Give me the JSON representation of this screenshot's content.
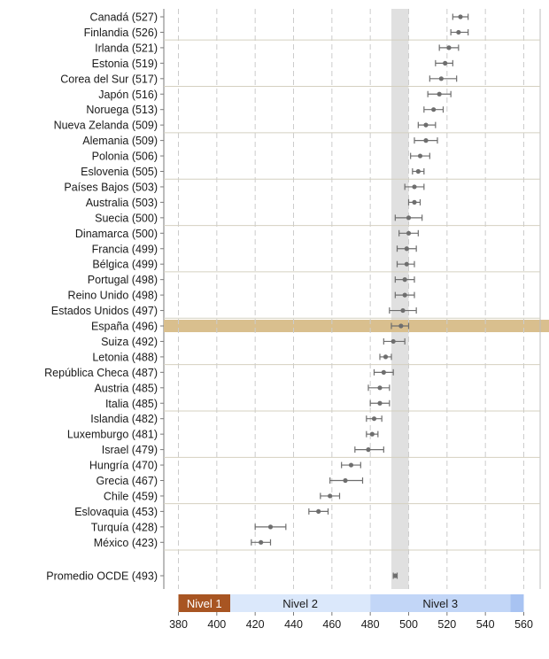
{
  "chart_data": {
    "type": "dot-errorbar",
    "title": "",
    "xlabel": "",
    "ylabel": "",
    "xlim": [
      370,
      570
    ],
    "xticks": [
      380,
      400,
      420,
      440,
      460,
      480,
      500,
      520,
      540,
      560
    ],
    "average_band": [
      491,
      500
    ],
    "highlight": "España (496)",
    "rows": [
      {
        "label": "Canadá (527)",
        "value": 527,
        "low": 523,
        "high": 531
      },
      {
        "label": "Finlandia (526)",
        "value": 526,
        "low": 522,
        "high": 531
      },
      {
        "label": "Irlanda (521)",
        "value": 521,
        "low": 516,
        "high": 526
      },
      {
        "label": "Estonia (519)",
        "value": 519,
        "low": 514,
        "high": 523
      },
      {
        "label": "Corea del Sur (517)",
        "value": 517,
        "low": 511,
        "high": 525
      },
      {
        "label": "Japón (516)",
        "value": 516,
        "low": 510,
        "high": 522
      },
      {
        "label": "Noruega (513)",
        "value": 513,
        "low": 508,
        "high": 518
      },
      {
        "label": "Nueva Zelanda (509)",
        "value": 509,
        "low": 505,
        "high": 514
      },
      {
        "label": "Alemania (509)",
        "value": 509,
        "low": 503,
        "high": 515
      },
      {
        "label": "Polonia (506)",
        "value": 506,
        "low": 501,
        "high": 511
      },
      {
        "label": "Eslovenia (505)",
        "value": 505,
        "low": 502,
        "high": 508
      },
      {
        "label": "Países Bajos (503)",
        "value": 503,
        "low": 498,
        "high": 508
      },
      {
        "label": "Australia (503)",
        "value": 503,
        "low": 500,
        "high": 506
      },
      {
        "label": "Suecia (500)",
        "value": 500,
        "low": 493,
        "high": 507
      },
      {
        "label": "Dinamarca (500)",
        "value": 500,
        "low": 495,
        "high": 505
      },
      {
        "label": "Francia (499)",
        "value": 499,
        "low": 494,
        "high": 504
      },
      {
        "label": "Bélgica (499)",
        "value": 499,
        "low": 494,
        "high": 503
      },
      {
        "label": "Portugal (498)",
        "value": 498,
        "low": 493,
        "high": 503
      },
      {
        "label": "Reino Unido (498)",
        "value": 498,
        "low": 493,
        "high": 503
      },
      {
        "label": "Estados Unidos (497)",
        "value": 497,
        "low": 490,
        "high": 504
      },
      {
        "label": "España (496)",
        "value": 496,
        "low": 491,
        "high": 500
      },
      {
        "label": "Suiza (492)",
        "value": 492,
        "low": 487,
        "high": 498
      },
      {
        "label": "Letonia (488)",
        "value": 488,
        "low": 485,
        "high": 491
      },
      {
        "label": "República Checa (487)",
        "value": 487,
        "low": 482,
        "high": 492
      },
      {
        "label": "Austria (485)",
        "value": 485,
        "low": 479,
        "high": 490
      },
      {
        "label": "Italia (485)",
        "value": 485,
        "low": 480,
        "high": 490
      },
      {
        "label": "Islandia (482)",
        "value": 482,
        "low": 478,
        "high": 486
      },
      {
        "label": "Luxemburgo (481)",
        "value": 481,
        "low": 478,
        "high": 484
      },
      {
        "label": "Israel (479)",
        "value": 479,
        "low": 472,
        "high": 487
      },
      {
        "label": "Hungría (470)",
        "value": 470,
        "low": 465,
        "high": 475
      },
      {
        "label": "Grecia (467)",
        "value": 467,
        "low": 459,
        "high": 476
      },
      {
        "label": "Chile (459)",
        "value": 459,
        "low": 454,
        "high": 464
      },
      {
        "label": "Eslovaquia (453)",
        "value": 453,
        "low": 448,
        "high": 458
      },
      {
        "label": "Turquía (428)",
        "value": 428,
        "low": 420,
        "high": 436
      },
      {
        "label": "México (423)",
        "value": 423,
        "low": 418,
        "high": 428
      }
    ],
    "groups_end_after": [
      1,
      4,
      7,
      10,
      13,
      16,
      19,
      22,
      25,
      28,
      31,
      34
    ],
    "average_row": {
      "label": "Promedio OCDE (493)",
      "value": 493,
      "low": 492,
      "high": 494
    },
    "levels": [
      {
        "label": "Nivel 1",
        "from": 380,
        "to": 407,
        "color": "#a85522",
        "text_color": "#ffffff"
      },
      {
        "label": "Nivel 2",
        "from": 407,
        "to": 480,
        "color": "#dbe8fb",
        "text_color": "#1a1a1a"
      },
      {
        "label": "Nivel 3",
        "from": 480,
        "to": 553,
        "color": "#c2d6f7",
        "text_color": "#1a1a1a"
      },
      {
        "label": "",
        "from": 553,
        "to": 560,
        "color": "#a8c3f2",
        "text_color": "#1a1a1a"
      }
    ],
    "colors": {
      "point": "#6e6e6e",
      "highlight_band": "#d9bf8e",
      "average_band": "#e0e0e0",
      "grid": "#cccccc",
      "separator": "#d4d0c0"
    }
  }
}
